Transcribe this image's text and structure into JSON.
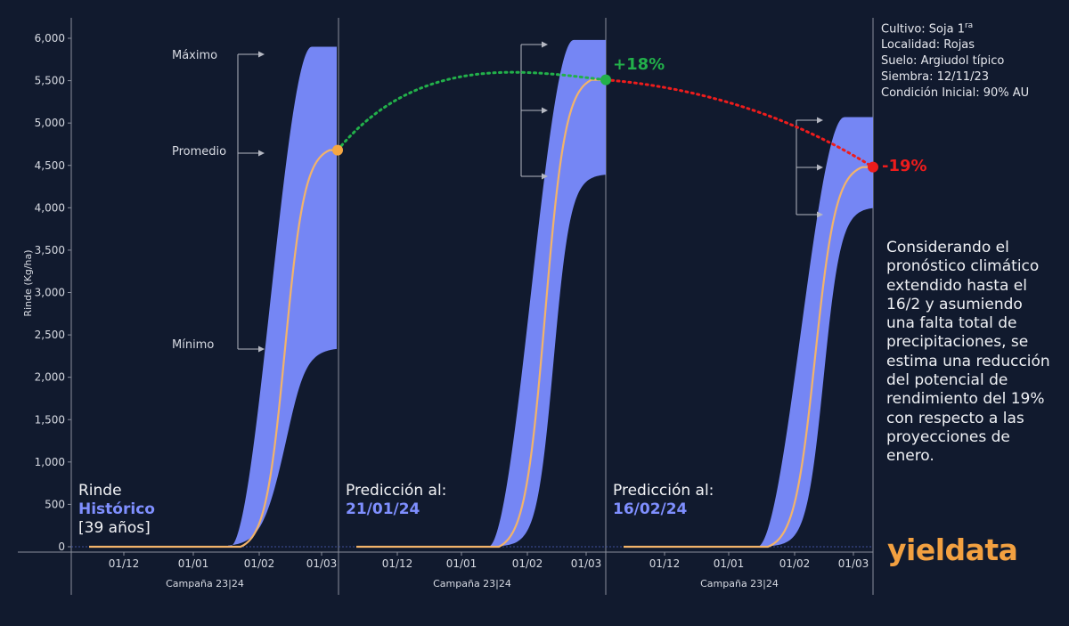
{
  "chart_data": {
    "type": "area",
    "ylabel": "Rinde (Kg/ha)",
    "xlabel": "Campaña 23|24",
    "ylim": [
      0,
      6000
    ],
    "yticks": [
      "0",
      "500",
      "1,000",
      "1,500",
      "2,000",
      "2,500",
      "3,000",
      "3,500",
      "4,000",
      "4,500",
      "5,000",
      "5,500",
      "6,000"
    ],
    "xticks": [
      "01/12",
      "01/01",
      "01/02",
      "01/03"
    ],
    "panels": [
      {
        "title_line1": "Rinde",
        "title_line2": "Histórico",
        "title_line3": "[39 años]",
        "final_average": 4680,
        "final_max": 5900,
        "final_min": 2350,
        "band_labels": [
          "Máximo",
          "Promedio",
          "Mínimo"
        ]
      },
      {
        "title_line1": "Predicción al:",
        "title_line2": "21/01/24",
        "final_average": 5510,
        "final_max": 5980,
        "final_min": 4400,
        "change_label": "+18%"
      },
      {
        "title_line1": "Predicción al:",
        "title_line2": "16/02/24",
        "final_average": 4480,
        "final_max": 5070,
        "final_min": 4010,
        "change_label": "-19%"
      }
    ]
  },
  "info": {
    "cultivo": "Cultivo: Soja 1ra",
    "localidad": "Localidad: Rojas",
    "suelo": "Suelo: Argiudol típico",
    "siembra": "Siembra: 12/11/23",
    "condicion": "Condición Inicial: 90% AU"
  },
  "note": "Considerando el pronóstico climático extendido hasta el 16/2 y asumiendo una falta total de precipitaciones, se estima una reducción del potencial de rendimiento del 19% con respecto a las proyecciones de enero.",
  "logo": "yieldata",
  "colors": {
    "background": "#111a2e",
    "band": "#7b8cff",
    "average": "#f2b36a",
    "marker_hist": "#f5a742",
    "positive": "#22b04a",
    "negative": "#ee1c1c",
    "accent_text": "#7f8fff"
  }
}
